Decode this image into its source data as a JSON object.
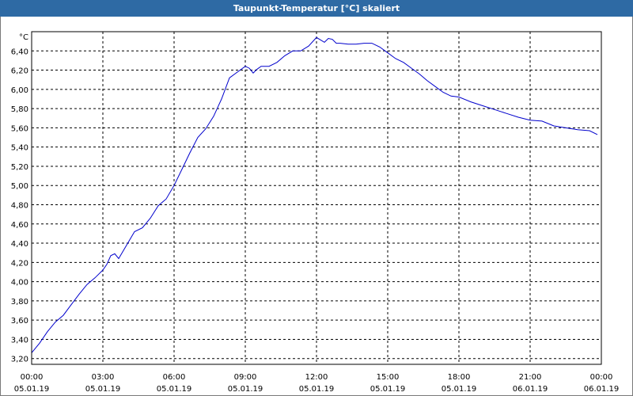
{
  "title": "Taupunkt-Temperatur [°C] skaliert",
  "colors": {
    "titlebar": "#2e6aa4",
    "line": "#0000cc",
    "grid": "#000000",
    "background": "#ffffff"
  },
  "chart_data": {
    "type": "line",
    "title": "Taupunkt-Temperatur [°C] skaliert",
    "ylabel": "°C",
    "xlabel": "",
    "ylim": [
      3.14,
      6.6
    ],
    "xlim_hours": [
      0,
      24
    ],
    "grid": true,
    "legend": "none",
    "y_ticks": [
      "6,40",
      "6,20",
      "6,00",
      "5,80",
      "5,60",
      "5,40",
      "5,20",
      "5,00",
      "4,80",
      "4,60",
      "4,40",
      "4,20",
      "4,00",
      "3,80",
      "3,60",
      "3,40",
      "3,20"
    ],
    "x_ticks": [
      {
        "time": "00:00",
        "date": "05.01.19"
      },
      {
        "time": "03:00",
        "date": "05.01.19"
      },
      {
        "time": "06:00",
        "date": "05.01.19"
      },
      {
        "time": "09:00",
        "date": "05.01.19"
      },
      {
        "time": "12:00",
        "date": "05.01.19"
      },
      {
        "time": "15:00",
        "date": "05.01.19"
      },
      {
        "time": "18:00",
        "date": "05.01.19"
      },
      {
        "time": "21:00",
        "date": "06.01.19"
      },
      {
        "time": "00:00",
        "date": "06.01.19"
      }
    ],
    "series": [
      {
        "x": [
          "00:00",
          "00:20",
          "00:40",
          "01:00",
          "01:20",
          "01:40",
          "02:00",
          "02:20",
          "02:40",
          "03:00",
          "03:10",
          "03:20",
          "03:30",
          "03:40",
          "04:00",
          "04:20",
          "04:40",
          "05:00",
          "05:20",
          "05:40",
          "06:00",
          "06:20",
          "06:40",
          "07:00",
          "07:20",
          "07:40",
          "08:00",
          "08:20",
          "08:40",
          "09:00",
          "09:10",
          "09:20",
          "09:30",
          "09:40",
          "09:50",
          "10:00",
          "10:20",
          "10:40",
          "11:00",
          "11:20",
          "11:40",
          "12:00",
          "12:20",
          "12:30",
          "12:40",
          "12:50",
          "13:00",
          "13:20",
          "13:40",
          "14:00",
          "14:20",
          "14:40",
          "15:00",
          "15:20",
          "15:40",
          "16:00",
          "16:20",
          "16:40",
          "17:00",
          "17:20",
          "17:40",
          "18:00",
          "18:30",
          "19:00",
          "19:30",
          "20:00",
          "20:30",
          "21:00",
          "21:30",
          "22:00",
          "22:30",
          "23:00",
          "23:30",
          "23:50"
        ],
        "y": [
          3.26,
          3.36,
          3.48,
          3.58,
          3.65,
          3.76,
          3.87,
          3.97,
          4.04,
          4.12,
          4.18,
          4.27,
          4.29,
          4.24,
          4.38,
          4.52,
          4.56,
          4.66,
          4.79,
          4.86,
          5.0,
          5.17,
          5.34,
          5.5,
          5.59,
          5.72,
          5.9,
          6.12,
          6.18,
          6.24,
          6.22,
          6.17,
          6.21,
          6.24,
          6.24,
          6.24,
          6.28,
          6.35,
          6.4,
          6.4,
          6.45,
          6.54,
          6.49,
          6.53,
          6.52,
          6.48,
          6.48,
          6.47,
          6.47,
          6.48,
          6.48,
          6.44,
          6.38,
          6.32,
          6.28,
          6.22,
          6.16,
          6.09,
          6.03,
          5.97,
          5.93,
          5.92,
          5.87,
          5.83,
          5.79,
          5.75,
          5.71,
          5.68,
          5.67,
          5.62,
          5.6,
          5.58,
          5.57,
          5.53
        ]
      }
    ]
  }
}
